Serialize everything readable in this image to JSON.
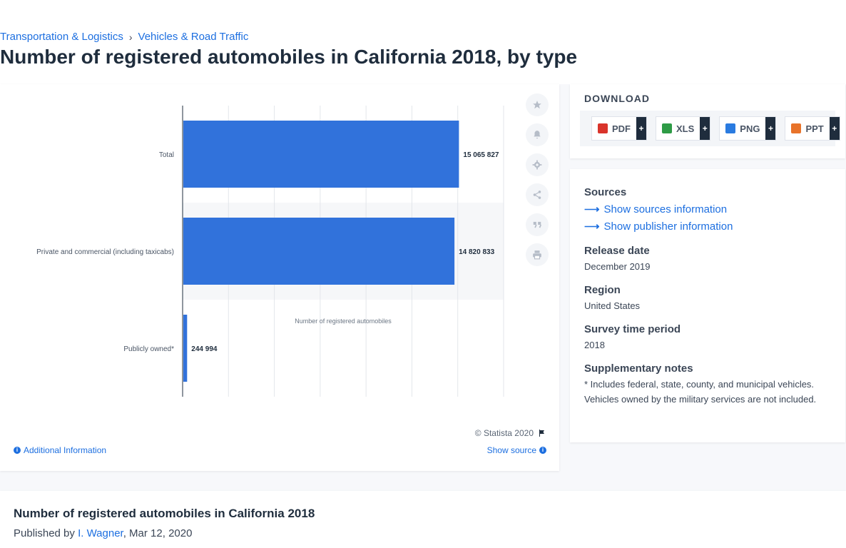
{
  "breadcrumb": [
    "Transportation & Logistics",
    "Vehicles & Road Traffic"
  ],
  "page_title": "Number of registered automobiles in California 2018, by type",
  "toolbar": {
    "icons": [
      "star-icon",
      "bell-icon",
      "gear-icon",
      "share-icon",
      "quote-icon",
      "print-icon"
    ]
  },
  "chart_data": {
    "type": "bar",
    "orientation": "horizontal",
    "categories": [
      "Total",
      "Private and commercial (including taxicabs)",
      "Publicly owned*"
    ],
    "values": [
      15065827,
      14820833,
      244994
    ],
    "value_labels": [
      "15 065 827",
      "14 820 833",
      "244 994"
    ],
    "title": "",
    "xlabel": "Number of registered automobiles",
    "ylabel": "",
    "xlim": [
      0,
      17500000
    ],
    "grid": true,
    "color": "#3172db"
  },
  "credits": {
    "statista": "© Statista 2020",
    "additional_info": "Additional Information",
    "show_source": "Show source"
  },
  "download": {
    "title": "DOWNLOAD",
    "buttons": [
      {
        "label": "PDF",
        "color": "#d9342b"
      },
      {
        "label": "XLS",
        "color": "#2e9b46"
      },
      {
        "label": "PNG",
        "color": "#2a7be0"
      },
      {
        "label": "PPT",
        "color": "#e8732a"
      }
    ],
    "plus": "+"
  },
  "info": {
    "sources_heading": "Sources",
    "show_sources": "Show sources information",
    "show_publisher": "Show publisher information",
    "release_heading": "Release date",
    "release_value": "December 2019",
    "region_heading": "Region",
    "region_value": "United States",
    "survey_heading": "Survey time period",
    "survey_value": "2018",
    "notes_heading": "Supplementary notes",
    "notes_value": "* Includes federal, state, county, and municipal vehicles. Vehicles owned by the military services are not included."
  },
  "bottom": {
    "title": "Number of registered automobiles in California 2018",
    "published_by": "Published by",
    "author": "I. Wagner",
    "date": ", Mar 12, 2020"
  }
}
